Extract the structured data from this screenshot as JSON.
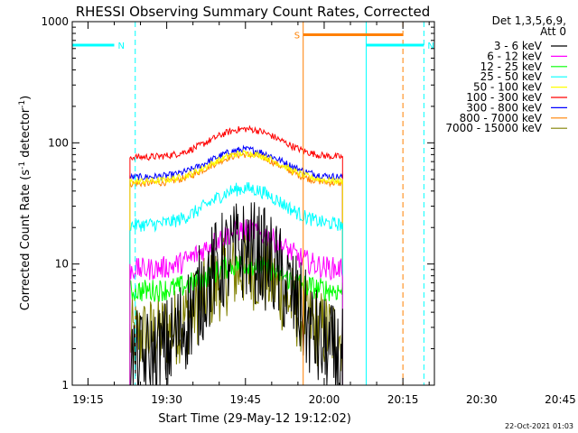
{
  "chart_data": {
    "type": "line",
    "title": "RHESSI Observing Summary Count Rates, Corrected",
    "xlabel": "Start Time (29-May-12 19:12:02)",
    "ylabel": "Corrected Count Rate (s⁻¹ detector⁻¹)",
    "ylabel_main": "Corrected Count Rate (s",
    "ylabel_sup1": "-1",
    "ylabel_mid": " detector",
    "ylabel_sup2": "-1",
    "ylabel_end": ")",
    "yscale": "log",
    "ylim": [
      1,
      1000
    ],
    "xlim_min": [
      0,
      69
    ],
    "x_ticks": [
      {
        "label": "19:15",
        "min": 3
      },
      {
        "label": "19:30",
        "min": 18
      },
      {
        "label": "19:45",
        "min": 33
      },
      {
        "label": "20:00",
        "min": 48
      },
      {
        "label": "20:15",
        "min": 63
      },
      {
        "label": "20:30",
        "min": 78
      },
      {
        "label": "20:45",
        "min": 93
      }
    ],
    "y_ticks": [
      {
        "label": "1",
        "value": 1
      },
      {
        "label": "10",
        "value": 10
      },
      {
        "label": "100",
        "value": 100
      },
      {
        "label": "1000",
        "value": 1000
      }
    ],
    "legend_header": [
      "Det 1,3,5,6,9,",
      "Att 0"
    ],
    "legend_position": "top-right",
    "series": [
      {
        "name": "3 - 6 keV",
        "color": "#000000",
        "base": 1.5,
        "peak": 13,
        "noise": 0.45
      },
      {
        "name": "6 - 12 keV",
        "color": "#ff00ff",
        "base": 9,
        "peak": 19,
        "noise": 0.1
      },
      {
        "name": "12 - 25 keV",
        "color": "#00ff00",
        "base": 6,
        "peak": 10,
        "noise": 0.1
      },
      {
        "name": "25 - 50 keV",
        "color": "#00ffff",
        "base": 21,
        "peak": 42,
        "noise": 0.06
      },
      {
        "name": "50 - 100 keV",
        "color": "#ffff00",
        "base": 48,
        "peak": 82,
        "noise": 0.03
      },
      {
        "name": "100 - 300 keV",
        "color": "#ff0000",
        "base": 76,
        "peak": 130,
        "noise": 0.03
      },
      {
        "name": "300 - 800 keV",
        "color": "#0000ff",
        "base": 52,
        "peak": 88,
        "noise": 0.03
      },
      {
        "name": "800 - 7000 keV",
        "color": "#ff8000",
        "base": 46,
        "peak": 80,
        "noise": 0.03
      },
      {
        "name": "7000 - 15000 keV",
        "color": "#808000",
        "base": 2.5,
        "peak": 9,
        "noise": 0.35
      }
    ],
    "data_window_min": [
      11,
      51.5
    ],
    "flags": [
      {
        "label": "N",
        "color": "#00ffff",
        "start_min": -4,
        "end_min": 8,
        "level": 640
      },
      {
        "label": "N",
        "color": "#00ffff",
        "start_min": 56,
        "end_min": 67,
        "level": 640
      },
      {
        "label": "S",
        "color": "#ff8000",
        "start_min": 44,
        "end_min": 63,
        "level": 780
      }
    ],
    "vlines": [
      {
        "min": 0,
        "color": "#00ffff",
        "style": "solid"
      },
      {
        "min": 12,
        "color": "#00ffff",
        "style": "dashed"
      },
      {
        "min": 44,
        "color": "#ff8000",
        "style": "solid"
      },
      {
        "min": 56,
        "color": "#00ffff",
        "style": "solid"
      },
      {
        "min": 63,
        "color": "#ff8000",
        "style": "dashed"
      },
      {
        "min": 67,
        "color": "#00ffff",
        "style": "dashed"
      }
    ]
  },
  "footer": {
    "timestamp": "22-Oct-2021 01:03"
  }
}
